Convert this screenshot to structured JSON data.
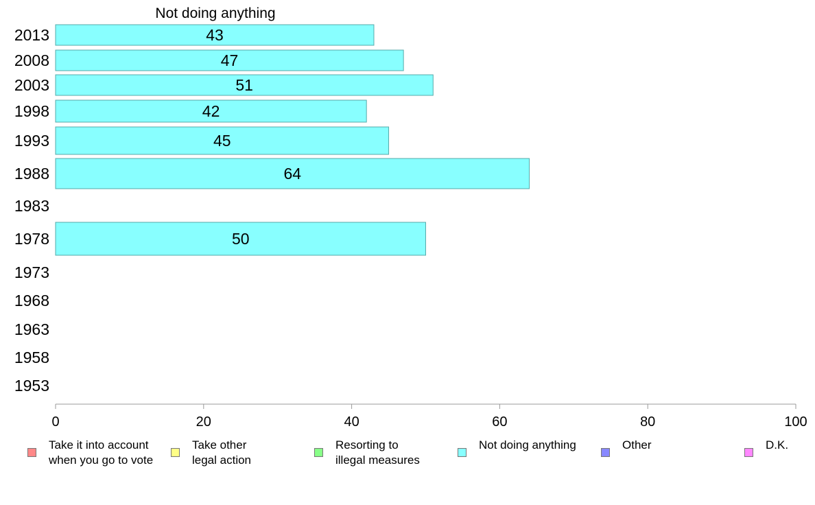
{
  "chart_data": {
    "type": "bar",
    "orientation": "horizontal",
    "title": "Not doing anything",
    "categories": [
      "2013",
      "2008",
      "2003",
      "1998",
      "1993",
      "1988",
      "1983",
      "1978",
      "1973",
      "1968",
      "1963",
      "1958",
      "1953"
    ],
    "values": [
      43,
      47,
      51,
      42,
      45,
      64,
      null,
      50,
      null,
      null,
      null,
      null,
      null
    ],
    "data_labels": [
      "43",
      "47",
      "51",
      "42",
      "45",
      "64",
      "",
      "50",
      "",
      "",
      "",
      "",
      ""
    ],
    "xlim": [
      0,
      100
    ],
    "xticks": [
      "0",
      "20",
      "40",
      "60",
      "80",
      "100"
    ],
    "xlabel": "",
    "ylabel": "",
    "grid": false,
    "bar_color": "#88ffff",
    "bar_edge_color": "#55aaaa",
    "legend_position": "bottom",
    "legend": [
      {
        "label": "Take it into account\nwhen you go to vote",
        "color": "#ff8888"
      },
      {
        "label": "Take other\nlegal action",
        "color": "#ffff88"
      },
      {
        "label": "Resorting to\nillegal measures",
        "color": "#88ff88"
      },
      {
        "label": "Not doing anything",
        "color": "#88ffff"
      },
      {
        "label": "Other",
        "color": "#8888ff"
      },
      {
        "label": "D.K.",
        "color": "#ff88ff"
      }
    ]
  }
}
